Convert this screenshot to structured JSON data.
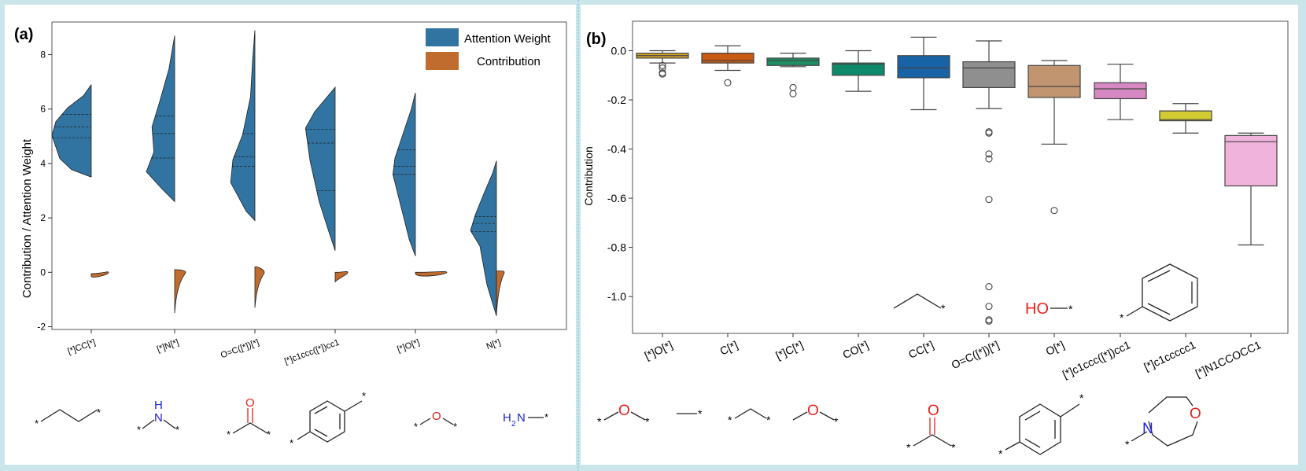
{
  "colors": {
    "violin_attention": "#3274a1",
    "violin_contribution": "#c06c2f",
    "background": "#cbe6ea",
    "panel": "#ffffff",
    "red": "#e8211c",
    "blue": "#1d24cf"
  },
  "panel_a": {
    "label": "(a)",
    "ylabel": "Contribution  /  Attention Weight",
    "legend": {
      "attention": "Attention Weight",
      "contribution": "Contribution"
    },
    "categories": [
      "[*]CC[*]",
      "[*]N[*]",
      "O=C([*])[*]",
      "[*]c1ccc([*])cc1",
      "[*]O[*]",
      "N[*]"
    ],
    "yticks": [
      "-2",
      "0",
      "2",
      "4",
      "6",
      "8"
    ],
    "structures": {
      "cc": {
        "atoms": [
          "*",
          "*"
        ]
      },
      "nh": {
        "atoms": [
          "H",
          "N",
          "*",
          "*"
        ]
      },
      "co": {
        "atoms": [
          "O",
          "*",
          "*"
        ]
      },
      "ring": {
        "atoms": [
          "*",
          "*"
        ]
      },
      "o": {
        "atoms": [
          "*",
          "O",
          "*"
        ]
      },
      "nh2": {
        "atoms": [
          "H",
          "2",
          "N",
          "*"
        ]
      }
    }
  },
  "panel_b": {
    "label": "(b)",
    "ylabel": "Contribution",
    "categories": [
      "[*]O[*]",
      "C[*]",
      "[*]C[*]",
      "CO[*]",
      "CC[*]",
      "O=C([*])[*]",
      "O[*]",
      "[*]c1ccc([*])cc1",
      "[*]c1ccccc1",
      "[*]N1CCOCC1"
    ],
    "yticks": [
      "0.0",
      "-0.2",
      "-0.4",
      "-0.6",
      "-0.8",
      "-1.0"
    ],
    "inset": {
      "ho": "HO",
      "star": "*"
    },
    "structures": {
      "oo": {
        "atoms": [
          "*",
          "O",
          "*"
        ]
      },
      "c": {
        "atoms": [
          "*"
        ]
      },
      "cc": {
        "atoms": [
          "*",
          "*"
        ]
      },
      "co": {
        "atoms": [
          "O",
          "*"
        ]
      },
      "ketone": {
        "atoms": [
          "O",
          "*",
          "*"
        ]
      },
      "ring": {
        "atoms": [
          "*",
          "*"
        ]
      },
      "morph": {
        "atoms": [
          "O",
          "N",
          "*"
        ]
      }
    }
  },
  "chart_data": [
    {
      "type": "violin",
      "title": "(a)",
      "ylabel": "Contribution / Attention Weight",
      "ylim": [
        -2.1,
        9.2
      ],
      "categories": [
        "[*]CC[*]",
        "[*]N[*]",
        "O=C([*])[*]",
        "[*]c1ccc([*])cc1",
        "[*]O[*]",
        "N[*]"
      ],
      "series": [
        {
          "name": "Attention Weight",
          "side": "left",
          "color": "#3274a1",
          "ranges": [
            [
              3.5,
              6.9
            ],
            [
              2.6,
              8.7
            ],
            [
              1.9,
              8.9
            ],
            [
              0.8,
              6.8
            ],
            [
              0.6,
              6.6
            ],
            [
              -1.6,
              4.1
            ]
          ],
          "quartiles": [
            [
              4.95,
              5.35,
              5.8
            ],
            [
              4.2,
              5.1,
              5.75
            ],
            [
              3.9,
              4.25,
              5.1
            ],
            [
              3.0,
              4.75,
              5.25
            ],
            [
              3.6,
              3.9,
              4.5
            ],
            [
              1.5,
              1.8,
              2.05
            ]
          ]
        },
        {
          "name": "Contribution",
          "side": "right",
          "color": "#c06c2f",
          "ranges": [
            [
              -0.15,
              -0.05
            ],
            [
              -1.5,
              0.1
            ],
            [
              -1.3,
              0.2
            ],
            [
              -0.35,
              0.0
            ],
            [
              -0.05,
              0.0
            ],
            [
              -1.55,
              0.05
            ]
          ]
        }
      ],
      "legend": "top-right"
    },
    {
      "type": "box",
      "title": "(b)",
      "ylabel": "Contribution",
      "ylim": [
        -1.15,
        0.12
      ],
      "categories": [
        "[*]O[*]",
        "C[*]",
        "[*]C[*]",
        "CO[*]",
        "CC[*]",
        "O=C([*])[*]",
        "O[*]",
        "[*]c1ccc([*])cc1",
        "[*]c1ccccc1",
        "[*]N1CCOCC1"
      ],
      "boxes": [
        {
          "whisker_low": -0.05,
          "q1": -0.03,
          "median": -0.02,
          "q3": -0.01,
          "whisker_high": 0.0,
          "outliers": [
            -0.06,
            -0.07,
            -0.09,
            -0.095
          ],
          "color": "#d2a22b"
        },
        {
          "whisker_low": -0.08,
          "q1": -0.05,
          "median": -0.04,
          "q3": -0.01,
          "whisker_high": 0.02,
          "outliers": [
            -0.13
          ],
          "color": "#c85a14"
        },
        {
          "whisker_low": -0.065,
          "q1": -0.06,
          "median": -0.04,
          "q3": -0.03,
          "whisker_high": -0.01,
          "outliers": [
            -0.15,
            -0.175
          ],
          "color": "#1f8e63"
        },
        {
          "whisker_low": -0.165,
          "q1": -0.1,
          "median": -0.055,
          "q3": -0.05,
          "whisker_high": 0.0,
          "outliers": [],
          "color": "#0e8a6a"
        },
        {
          "whisker_low": -0.24,
          "q1": -0.11,
          "median": -0.07,
          "q3": -0.02,
          "whisker_high": 0.055,
          "outliers": [],
          "color": "#1763a6"
        },
        {
          "whisker_low": -0.235,
          "q1": -0.15,
          "median": -0.07,
          "q3": -0.045,
          "whisker_high": 0.04,
          "outliers": [
            -0.33,
            -0.335,
            -0.42,
            -0.44,
            -0.605,
            -0.96,
            -1.04,
            -1.095,
            -1.1
          ],
          "color": "#8f8f8f"
        },
        {
          "whisker_low": -0.38,
          "q1": -0.19,
          "median": -0.145,
          "q3": -0.06,
          "whisker_high": -0.04,
          "outliers": [
            -0.65
          ],
          "color": "#c19570"
        },
        {
          "whisker_low": -0.28,
          "q1": -0.195,
          "median": -0.155,
          "q3": -0.13,
          "whisker_high": -0.055,
          "outliers": [],
          "color": "#d688c2"
        },
        {
          "whisker_low": -0.335,
          "q1": -0.285,
          "median": -0.28,
          "q3": -0.245,
          "whisker_high": -0.215,
          "outliers": [],
          "color": "#d3cb33"
        },
        {
          "whisker_low": -0.79,
          "q1": -0.55,
          "median": -0.37,
          "q3": -0.345,
          "whisker_high": -0.335,
          "outliers": [],
          "color": "#f0b3dc"
        }
      ]
    }
  ]
}
